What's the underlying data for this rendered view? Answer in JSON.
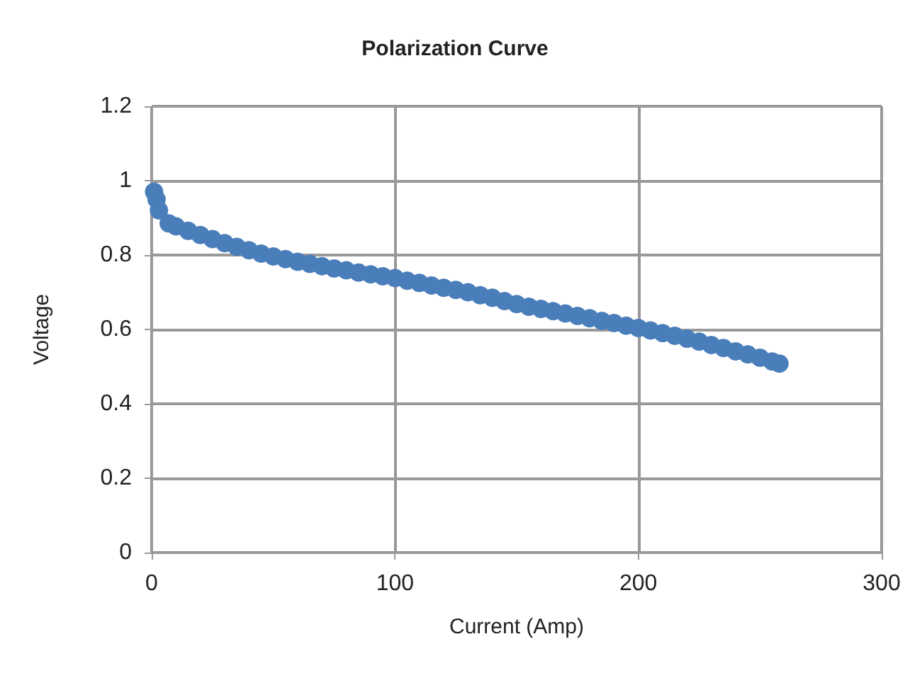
{
  "chart_data": {
    "type": "scatter",
    "title": "Polarization Curve",
    "xlabel": "Current (Amp)",
    "ylabel": "Voltage",
    "marker": "circle",
    "grid": true,
    "xlim": [
      0,
      300
    ],
    "xticks": [
      0,
      100,
      200,
      300
    ],
    "ylim": [
      0,
      1.2
    ],
    "yticks": [
      0,
      0.2,
      0.4,
      0.6,
      0.8,
      1,
      1.2
    ],
    "series": [
      {
        "color": "#4a7ebb",
        "x": [
          1,
          2,
          3,
          7,
          10,
          15,
          20,
          25,
          30,
          35,
          40,
          45,
          50,
          55,
          60,
          65,
          70,
          75,
          80,
          85,
          90,
          95,
          100,
          105,
          110,
          115,
          120,
          125,
          130,
          135,
          140,
          145,
          150,
          155,
          160,
          165,
          170,
          175,
          180,
          185,
          190,
          195,
          200,
          205,
          210,
          215,
          220,
          225,
          230,
          235,
          240,
          245,
          250,
          255,
          258
        ],
        "values": [
          0.97,
          0.95,
          0.92,
          0.885,
          0.877,
          0.865,
          0.854,
          0.843,
          0.832,
          0.822,
          0.813,
          0.804,
          0.796,
          0.789,
          0.782,
          0.776,
          0.77,
          0.764,
          0.759,
          0.753,
          0.748,
          0.743,
          0.738,
          0.731,
          0.725,
          0.718,
          0.712,
          0.706,
          0.7,
          0.692,
          0.685,
          0.676,
          0.668,
          0.661,
          0.655,
          0.649,
          0.643,
          0.636,
          0.63,
          0.623,
          0.617,
          0.61,
          0.604,
          0.597,
          0.59,
          0.583,
          0.575,
          0.567,
          0.558,
          0.55,
          0.541,
          0.533,
          0.524,
          0.514,
          0.508
        ]
      }
    ]
  }
}
